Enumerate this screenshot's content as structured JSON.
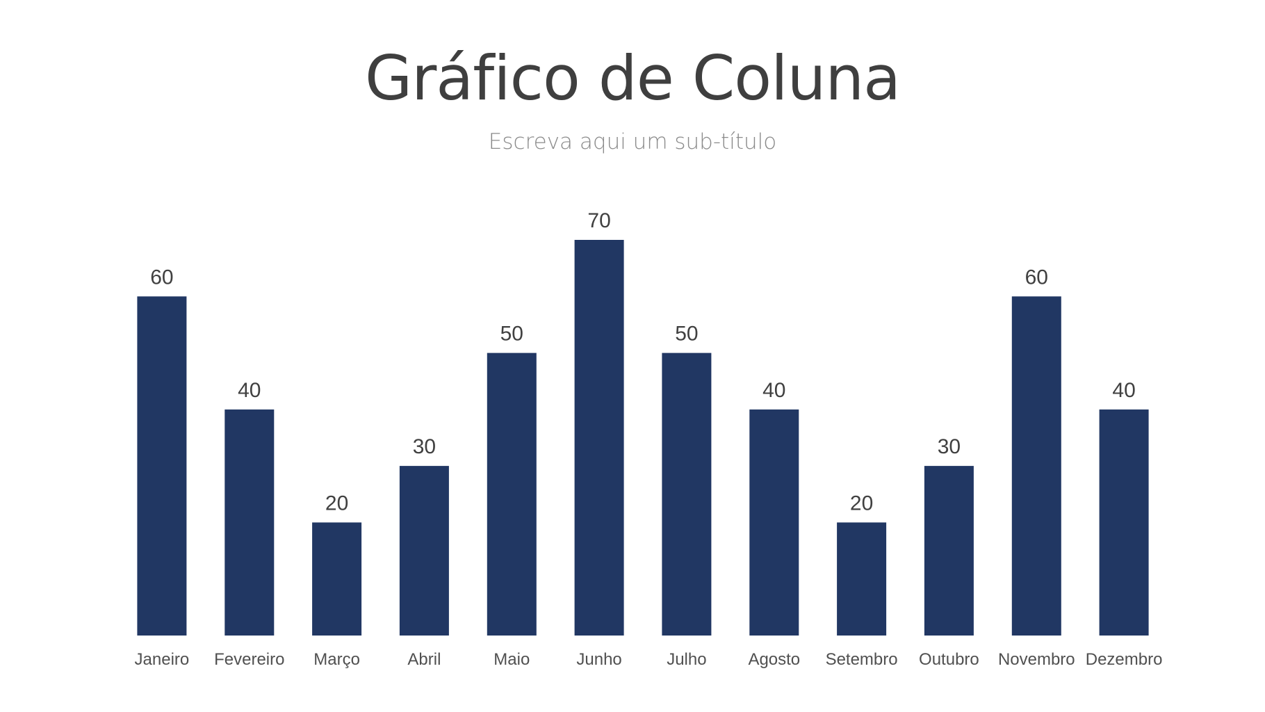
{
  "chart_data": {
    "type": "bar",
    "title": "Gráfico de Coluna",
    "subtitle": "Escreva aqui um sub-título",
    "categories": [
      "Janeiro",
      "Fevereiro",
      "Março",
      "Abril",
      "Maio",
      "Junho",
      "Julho",
      "Agosto",
      "Setembro",
      "Outubro",
      "Novembro",
      "Dezembro"
    ],
    "values": [
      60,
      40,
      20,
      30,
      50,
      70,
      50,
      40,
      20,
      30,
      60,
      40
    ],
    "xlabel": "",
    "ylabel": "",
    "ylim": [
      0,
      70
    ],
    "grid": false,
    "legend": "none",
    "data_labels": true,
    "colors": {
      "bar": "#213763",
      "title": "#3f3f3f",
      "subtitle": "#8a8a8a",
      "value_label": "#404040",
      "category_label": "#505050"
    }
  }
}
